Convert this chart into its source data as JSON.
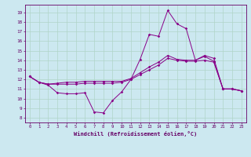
{
  "xlabel": "Windchill (Refroidissement éolien,°C)",
  "xlim": [
    -0.5,
    23.5
  ],
  "ylim": [
    7.5,
    19.8
  ],
  "yticks": [
    8,
    9,
    10,
    11,
    12,
    13,
    14,
    15,
    16,
    17,
    18,
    19
  ],
  "xticks": [
    0,
    1,
    2,
    3,
    4,
    5,
    6,
    7,
    8,
    9,
    10,
    11,
    12,
    13,
    14,
    15,
    16,
    17,
    18,
    19,
    20,
    21,
    22,
    23
  ],
  "background_color": "#cce8f0",
  "grid_color": "#b0d4c8",
  "line_color": "#880088",
  "line1": [
    12.3,
    11.7,
    11.4,
    10.6,
    10.5,
    10.5,
    10.6,
    8.6,
    8.5,
    9.8,
    10.7,
    12.0,
    14.1,
    16.7,
    16.5,
    19.2,
    17.8,
    17.3,
    14.0,
    14.4,
    13.9,
    11.0,
    11.0,
    10.8
  ],
  "line2": [
    12.3,
    11.7,
    11.5,
    11.5,
    11.5,
    11.5,
    11.6,
    11.6,
    11.6,
    11.6,
    11.7,
    12.0,
    12.5,
    13.0,
    13.5,
    14.2,
    14.0,
    13.9,
    13.9,
    14.0,
    13.8,
    11.0,
    11.0,
    10.8
  ],
  "line3": [
    12.3,
    11.7,
    11.5,
    11.6,
    11.7,
    11.7,
    11.8,
    11.8,
    11.8,
    11.8,
    11.8,
    12.1,
    12.7,
    13.3,
    13.8,
    14.5,
    14.1,
    14.0,
    14.0,
    14.5,
    14.2,
    11.0,
    11.0,
    10.8
  ],
  "marker": "D",
  "markersize": 1.8,
  "linewidth": 0.7,
  "tick_fontsize": 4.0,
  "xlabel_fontsize": 5.0
}
